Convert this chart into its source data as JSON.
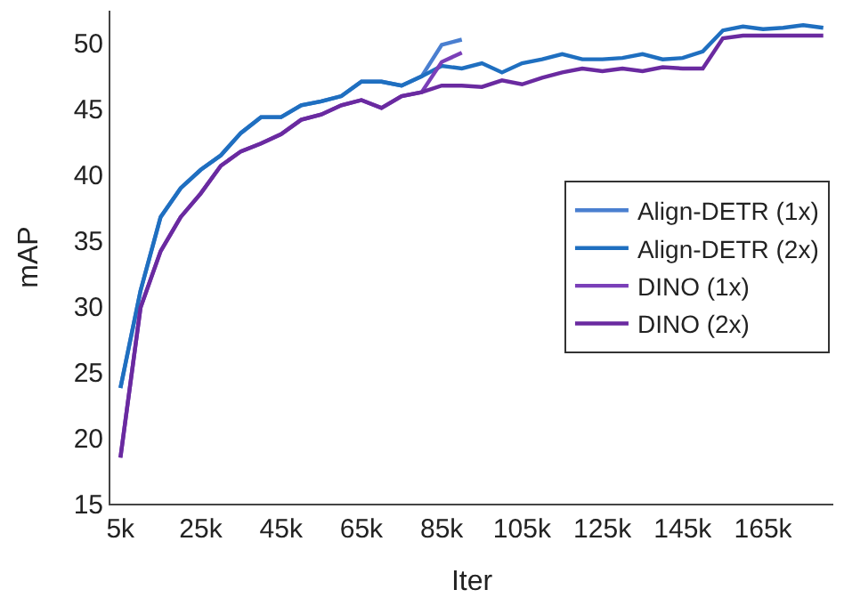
{
  "chart_data": {
    "type": "line",
    "xlabel": "Iter",
    "ylabel": "mAP",
    "x": [
      5000,
      10000,
      15000,
      20000,
      25000,
      30000,
      35000,
      40000,
      45000,
      50000,
      55000,
      60000,
      65000,
      70000,
      75000,
      80000,
      85000,
      90000,
      95000,
      100000,
      105000,
      110000,
      115000,
      120000,
      125000,
      130000,
      135000,
      140000,
      145000,
      150000,
      155000,
      160000,
      165000,
      170000,
      175000,
      180000
    ],
    "series": [
      {
        "name": "Align-DETR (1x)",
        "color": "#4a7fd0",
        "values": [
          23.8,
          31.2,
          36.8,
          39.0,
          40.4,
          41.5,
          43.2,
          44.4,
          44.4,
          45.3,
          45.6,
          46.0,
          47.1,
          47.1,
          46.8,
          47.5,
          49.9,
          50.3,
          null,
          null,
          null,
          null,
          null,
          null,
          null,
          null,
          null,
          null,
          null,
          null,
          null,
          null,
          null,
          null,
          null,
          null
        ]
      },
      {
        "name": "Align-DETR (2x)",
        "color": "#1f6fc0",
        "values": [
          23.8,
          31.2,
          36.8,
          39.0,
          40.4,
          41.5,
          43.2,
          44.4,
          44.4,
          45.3,
          45.6,
          46.0,
          47.1,
          47.1,
          46.8,
          47.5,
          48.3,
          48.1,
          48.5,
          47.8,
          48.5,
          48.8,
          49.2,
          48.8,
          48.8,
          48.9,
          49.2,
          48.8,
          48.9,
          49.4,
          51.0,
          51.3,
          51.1,
          51.2,
          51.4,
          51.2
        ]
      },
      {
        "name": "DINO (1x)",
        "color": "#7a3fb8",
        "values": [
          18.5,
          29.9,
          34.2,
          36.8,
          38.6,
          40.7,
          41.8,
          42.4,
          43.1,
          44.2,
          44.6,
          45.3,
          45.7,
          45.1,
          46.0,
          46.3,
          48.6,
          49.3,
          null,
          null,
          null,
          null,
          null,
          null,
          null,
          null,
          null,
          null,
          null,
          null,
          null,
          null,
          null,
          null,
          null,
          null
        ]
      },
      {
        "name": "DINO (2x)",
        "color": "#6a2aa0",
        "values": [
          18.5,
          29.9,
          34.2,
          36.8,
          38.6,
          40.7,
          41.8,
          42.4,
          43.1,
          44.2,
          44.6,
          45.3,
          45.7,
          45.1,
          46.0,
          46.3,
          46.8,
          46.8,
          46.7,
          47.2,
          46.9,
          47.4,
          47.8,
          48.1,
          47.9,
          48.1,
          47.9,
          48.2,
          48.1,
          48.1,
          50.4,
          50.6,
          50.6,
          50.6,
          50.6,
          50.6
        ]
      }
    ],
    "xlim": [
      2500,
      182500
    ],
    "xticks": [
      {
        "value": 5000,
        "label": "5k"
      },
      {
        "value": 25000,
        "label": "25k"
      },
      {
        "value": 45000,
        "label": "45k"
      },
      {
        "value": 65000,
        "label": "65k"
      },
      {
        "value": 85000,
        "label": "85k"
      },
      {
        "value": 105000,
        "label": "105k"
      },
      {
        "value": 125000,
        "label": "125k"
      },
      {
        "value": 145000,
        "label": "145k"
      },
      {
        "value": 165000,
        "label": "165k"
      }
    ],
    "ylim": [
      15,
      52.5
    ],
    "yticks": [
      15,
      20,
      25,
      30,
      35,
      40,
      45,
      50
    ],
    "legend": "right",
    "marker": "none",
    "line_style": "solid"
  }
}
